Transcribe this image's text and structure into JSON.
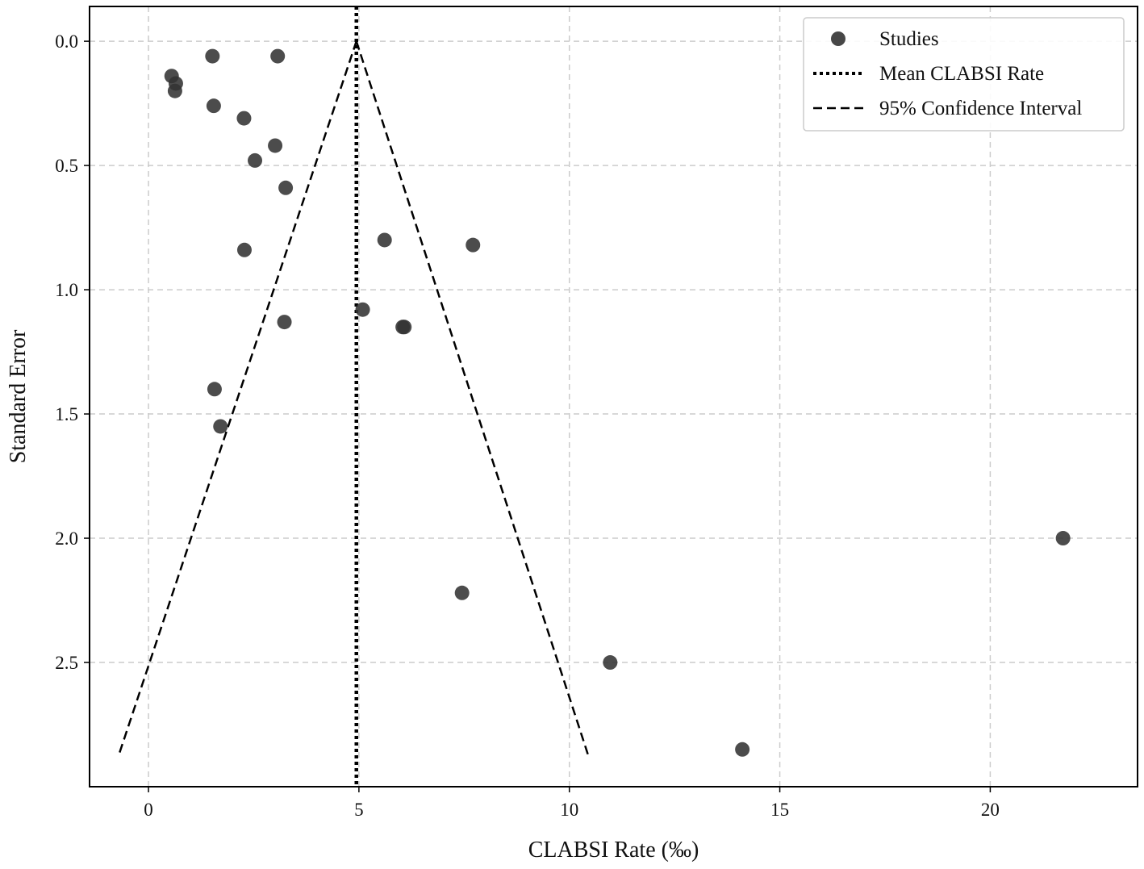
{
  "chart_data": {
    "type": "scatter",
    "title": "",
    "xlabel": "CLABSI Rate (‰)",
    "ylabel": "Standard Error",
    "xlim": [
      -1.4,
      23.5
    ],
    "ylim": [
      3.0,
      -0.14
    ],
    "y_inverted": true,
    "grid": true,
    "legend_position": "top-right",
    "x_ticks": [
      "0",
      "5",
      "10",
      "15",
      "20"
    ],
    "y_ticks": [
      "0.0",
      "0.5",
      "1.0",
      "1.5",
      "2.0",
      "2.5"
    ],
    "legend": [
      {
        "label": "Studies",
        "marker": "circle"
      },
      {
        "label": "Mean CLABSI Rate",
        "marker": "dotted-line"
      },
      {
        "label": "95% Confidence Interval",
        "marker": "dashed-line"
      }
    ],
    "mean_rate": 4.94,
    "ci_lines": {
      "left": [
        [
          4.94,
          0.0
        ],
        [
          -0.72,
          2.88
        ]
      ],
      "right": [
        [
          4.94,
          0.0
        ],
        [
          10.46,
          2.88
        ]
      ]
    },
    "series": [
      {
        "name": "Studies",
        "color": "#333333",
        "points": [
          {
            "x": 1.52,
            "y": 0.06
          },
          {
            "x": 3.07,
            "y": 0.06
          },
          {
            "x": 0.55,
            "y": 0.14
          },
          {
            "x": 0.65,
            "y": 0.17
          },
          {
            "x": 0.63,
            "y": 0.2
          },
          {
            "x": 1.55,
            "y": 0.26
          },
          {
            "x": 2.27,
            "y": 0.31
          },
          {
            "x": 3.01,
            "y": 0.42
          },
          {
            "x": 2.53,
            "y": 0.48
          },
          {
            "x": 3.26,
            "y": 0.59
          },
          {
            "x": 5.61,
            "y": 0.8
          },
          {
            "x": 7.71,
            "y": 0.82
          },
          {
            "x": 2.28,
            "y": 0.84
          },
          {
            "x": 5.09,
            "y": 1.08
          },
          {
            "x": 6.04,
            "y": 1.15
          },
          {
            "x": 6.08,
            "y": 1.15
          },
          {
            "x": 3.23,
            "y": 1.13
          },
          {
            "x": 1.57,
            "y": 1.4
          },
          {
            "x": 1.71,
            "y": 1.55
          },
          {
            "x": 21.73,
            "y": 2.0
          },
          {
            "x": 7.45,
            "y": 2.22
          },
          {
            "x": 10.97,
            "y": 2.5
          },
          {
            "x": 14.11,
            "y": 2.85
          }
        ]
      }
    ]
  }
}
